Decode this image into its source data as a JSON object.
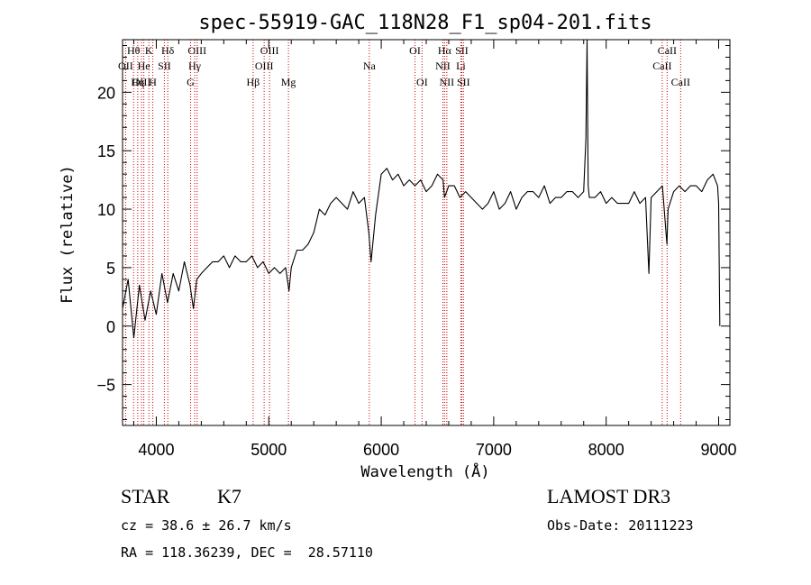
{
  "chart_data": {
    "type": "line",
    "title": "spec-55919-GAC_118N28_F1_sp04-201.fits",
    "xlabel": "Wavelength (Å)",
    "ylabel": "Flux (relative)",
    "xlim": [
      3700,
      9100
    ],
    "ylim": [
      -8.5,
      24.5
    ],
    "xticks": [
      4000,
      5000,
      6000,
      7000,
      8000,
      9000
    ],
    "yticks": [
      -5,
      0,
      5,
      10,
      15,
      20
    ],
    "grid": false,
    "series": [
      {
        "name": "spectrum",
        "color": "#000000",
        "x": [
          3700,
          3750,
          3800,
          3850,
          3900,
          3950,
          4000,
          4050,
          4100,
          4150,
          4200,
          4250,
          4300,
          4330,
          4360,
          4400,
          4450,
          4500,
          4550,
          4600,
          4650,
          4700,
          4750,
          4800,
          4850,
          4900,
          4950,
          5000,
          5050,
          5100,
          5150,
          5180,
          5200,
          5250,
          5300,
          5350,
          5400,
          5450,
          5500,
          5550,
          5600,
          5650,
          5700,
          5750,
          5800,
          5850,
          5890,
          5910,
          5950,
          6000,
          6050,
          6100,
          6150,
          6200,
          6250,
          6300,
          6350,
          6400,
          6450,
          6500,
          6550,
          6563,
          6600,
          6650,
          6700,
          6750,
          6800,
          6850,
          6900,
          6950,
          7000,
          7050,
          7100,
          7150,
          7200,
          7250,
          7300,
          7350,
          7400,
          7450,
          7500,
          7550,
          7600,
          7650,
          7700,
          7750,
          7800,
          7820,
          7830,
          7840,
          7850,
          7900,
          7950,
          8000,
          8050,
          8100,
          8150,
          8200,
          8250,
          8300,
          8350,
          8380,
          8400,
          8450,
          8500,
          8540,
          8550,
          8600,
          8650,
          8700,
          8750,
          8800,
          8850,
          8900,
          8950,
          8990,
          9000,
          9010
        ],
        "values": [
          1.5,
          4.0,
          -1.0,
          3.5,
          0.5,
          3.0,
          1.0,
          4.5,
          2.0,
          4.5,
          3.0,
          5.5,
          3.5,
          1.5,
          4.0,
          4.5,
          5.0,
          5.5,
          5.5,
          6.0,
          5.0,
          6.0,
          5.5,
          5.5,
          6.0,
          5.0,
          5.5,
          4.5,
          5.0,
          4.5,
          5.0,
          3.0,
          5.0,
          6.5,
          6.5,
          7.0,
          8.0,
          10.0,
          9.5,
          10.5,
          11.0,
          10.5,
          10.0,
          11.5,
          10.5,
          11.0,
          8.0,
          5.5,
          9.5,
          13.0,
          13.5,
          12.5,
          13.0,
          12.0,
          12.5,
          12.0,
          12.5,
          11.5,
          12.0,
          13.0,
          12.5,
          11.0,
          12.0,
          12.0,
          11.0,
          11.5,
          11.0,
          10.5,
          10.0,
          10.5,
          11.5,
          10.0,
          10.5,
          11.5,
          10.0,
          11.0,
          11.5,
          11.5,
          11.0,
          12.0,
          10.5,
          11.0,
          11.0,
          11.5,
          11.5,
          11.0,
          11.5,
          16.0,
          24.5,
          12.0,
          11.0,
          11.0,
          11.5,
          10.5,
          11.0,
          10.5,
          10.5,
          10.5,
          11.5,
          10.5,
          11.0,
          4.5,
          11.0,
          11.5,
          12.0,
          7.0,
          10.0,
          11.5,
          12.0,
          11.5,
          12.0,
          12.0,
          11.5,
          12.5,
          13.0,
          12.0,
          10.5,
          0.0
        ]
      }
    ],
    "line_markers": [
      {
        "label": "Hθ",
        "wavelength": 3798,
        "row": 0
      },
      {
        "label": "OII",
        "wavelength": 3727,
        "row": 1
      },
      {
        "label": "OIII",
        "wavelength": 3869,
        "row": 2
      },
      {
        "label": "K",
        "wavelength": 3934,
        "row": 0
      },
      {
        "label": "He",
        "wavelength": 3889,
        "row": 1
      },
      {
        "label": "Hη",
        "wavelength": 3835,
        "row": 2
      },
      {
        "label": "H",
        "wavelength": 3969,
        "row": 2
      },
      {
        "label": "Hδ",
        "wavelength": 4102,
        "row": 0
      },
      {
        "label": "SII",
        "wavelength": 4072,
        "row": 1
      },
      {
        "label": "OIII",
        "wavelength": 4363,
        "row": 0
      },
      {
        "label": "Hγ",
        "wavelength": 4341,
        "row": 1
      },
      {
        "label": "G",
        "wavelength": 4305,
        "row": 2
      },
      {
        "label": "OIII",
        "wavelength": 5007,
        "row": 0
      },
      {
        "label": "OIII",
        "wavelength": 4959,
        "row": 1
      },
      {
        "label": "Hβ",
        "wavelength": 4861,
        "row": 2
      },
      {
        "label": "Mg",
        "wavelength": 5175,
        "row": 2
      },
      {
        "label": "Na",
        "wavelength": 5894,
        "row": 1
      },
      {
        "label": "OI",
        "wavelength": 6300,
        "row": 0
      },
      {
        "label": "OI",
        "wavelength": 6363,
        "row": 2
      },
      {
        "label": "Hα",
        "wavelength": 6563,
        "row": 0
      },
      {
        "label": "SII",
        "wavelength": 6716,
        "row": 0
      },
      {
        "label": "NII",
        "wavelength": 6548,
        "row": 1
      },
      {
        "label": "Li",
        "wavelength": 6708,
        "row": 1
      },
      {
        "label": "NII",
        "wavelength": 6583,
        "row": 2
      },
      {
        "label": "SII",
        "wavelength": 6731,
        "row": 2
      },
      {
        "label": "CaII",
        "wavelength": 8542,
        "row": 0
      },
      {
        "label": "CaII",
        "wavelength": 8498,
        "row": 1
      },
      {
        "label": "CaII",
        "wavelength": 8662,
        "row": 2
      }
    ],
    "marker_color": "#cc0000"
  },
  "info": {
    "class": "STAR",
    "subclass": "K7",
    "survey": "LAMOST DR3",
    "cz": "cz = 38.6 ± 26.7 km/s",
    "obs_date": "Obs-Date: 20111223",
    "coords": "RA = 118.36239, DEC =  28.57110"
  }
}
